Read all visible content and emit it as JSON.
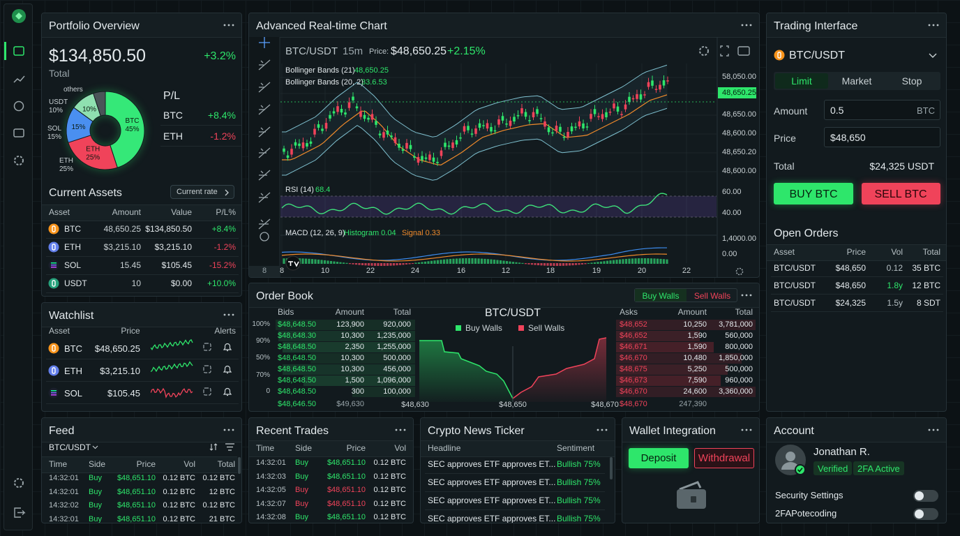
{
  "portfolio": {
    "title": "Portfolio Overview",
    "total_value": "$134,850.50",
    "change": "+3.2%",
    "total_label": "Total",
    "pl_title": "P/L",
    "pl_rows": [
      [
        "BTC",
        "+8.4%"
      ],
      [
        "ETH",
        "-1.2%"
      ]
    ],
    "assets_title": "Current Assets",
    "assets_button": "Current rate",
    "assets_columns": [
      "Asset",
      "Amount",
      "Value",
      "P/L%"
    ],
    "assets_rows": [
      [
        "BTC",
        "48,650.25",
        "$134,850.50",
        "+8.4%"
      ],
      [
        "ETH",
        "$3,215.10",
        "$3,215.10",
        "-1.2%"
      ],
      [
        "SOL",
        "15.45",
        "$105.45",
        "-15.2%"
      ],
      [
        "USDT",
        "10",
        "$0.00",
        "+10.0%"
      ]
    ]
  },
  "chart_data": {
    "type": "pie",
    "categories": [
      "BTC",
      "ETH",
      "SOL",
      "USDT",
      "others"
    ],
    "values": [
      45,
      25,
      15,
      10,
      5
    ],
    "value_labels": [
      "45%",
      "25%",
      "15%",
      "10%",
      null
    ],
    "colors": [
      "#35e878",
      "#f0435a",
      "#4a8ff0",
      "#8fe0b0",
      "#4a5458"
    ]
  },
  "main_chart": {
    "title": "Advanced Real-time Chart",
    "pair": "BTC/USDT",
    "interval": "15m",
    "price_label": "Price:",
    "price": "$48,650.25",
    "change": "+2.15%",
    "indicators": [
      {
        "name": "Bollinger Bands (21)",
        "value": "48,650.25"
      },
      {
        "name": "Bollinger Bands (20, 2)",
        "value": "33.6.53"
      }
    ],
    "rsi": {
      "name": "RSI (14)",
      "value": "68.4"
    },
    "macd": {
      "name": "MACD (12, 26, 9)",
      "histogram": "Histogram 0.04",
      "signal": "Signal 0.33"
    },
    "price_ticks": [
      "58,050.00",
      "48,650.25",
      "48,650.00",
      "48,600.00",
      "48,650.20",
      "48,600.00"
    ],
    "rsi_ticks": [
      "60.00",
      "40.00"
    ],
    "macd_ticks": [
      "1,4000.00",
      "0.00"
    ],
    "x_labels": [
      "8",
      "10",
      "22",
      "24",
      "16",
      "12",
      "18",
      "19",
      "20",
      "22"
    ],
    "toolbar_badge": "8"
  },
  "trading": {
    "title": "Trading Interface",
    "pair": "BTC/USDT",
    "tabs": [
      "Limit",
      "Market",
      "Stop"
    ],
    "amount_label": "Amount",
    "amount": "0.5",
    "amount_unit": "BTC",
    "price_label": "Price",
    "price": "$48,650",
    "total_label": "Total",
    "total": "$24,325 USDT",
    "buy": "BUY BTC",
    "sell": "SELL BTC",
    "orders_title": "Open Orders",
    "orders_columns": [
      "Asset",
      "Price",
      "Vol",
      "Total"
    ],
    "orders_rows": [
      [
        "BTC/USDT",
        "$48,650",
        "0.12",
        "35 BTC"
      ],
      [
        "BTC/USDT",
        "$48,650",
        "1.8y",
        "12 BTC"
      ],
      [
        "BTC/USDT",
        "$24,325",
        "1.5y",
        "8 SDT"
      ]
    ]
  },
  "watchlist": {
    "title": "Watchlist",
    "columns": [
      "Asset",
      "Price",
      "Alerts"
    ],
    "rows": [
      [
        "BTC",
        "$48,650.25"
      ],
      [
        "ETH",
        "$3,215.10"
      ],
      [
        "SOL",
        "$105.45"
      ]
    ]
  },
  "order_book": {
    "title": "Order Book",
    "toggle": [
      "Buy Walls",
      "Sell Walls"
    ],
    "bid_columns": [
      "Bids",
      "Amount",
      "Total"
    ],
    "depth_levels": [
      "100%",
      "90%",
      "50%",
      "70%",
      "0"
    ],
    "bids": [
      [
        "$48,648.50",
        "123,900",
        "920,000"
      ],
      [
        "$48,648.30",
        "10,300",
        "1,235,000"
      ],
      [
        "$48,648.50",
        "2,350",
        "1,255,000"
      ],
      [
        "$48,648.50",
        "10,300",
        "500,000"
      ],
      [
        "$48,648.50",
        "10,300",
        "456,000"
      ],
      [
        "$48,648.50",
        "1,500",
        "1,096,000"
      ],
      [
        "$48,648.50",
        "300",
        "100,000"
      ],
      [
        "$48,646.50",
        "$49,630"
      ]
    ],
    "depth_title": "BTC/USDT",
    "legend": [
      "Buy Walls",
      "Sell Walls"
    ],
    "depth_x_labels": [
      "$48,630",
      "$48,650",
      "$48,670"
    ],
    "ask_columns": [
      "Asks",
      "Amount",
      "Total"
    ],
    "asks": [
      [
        "$48,652",
        "10,250",
        "3,781,000"
      ],
      [
        "$46,652",
        "1,590",
        "560,000"
      ],
      [
        "$46,671",
        "1,590",
        "800,000"
      ],
      [
        "$46,670",
        "10,480",
        "1,850,000"
      ],
      [
        "$48,675",
        "5,250",
        "500,000"
      ],
      [
        "$46,673",
        "7,590",
        "960,000"
      ],
      [
        "$46,670",
        "24,600",
        "3,360,000"
      ],
      [
        "$48,670",
        "247,390"
      ]
    ]
  },
  "feed": {
    "title": "Feed",
    "pair": "BTC/USDT",
    "columns": [
      "Time",
      "Side",
      "Price",
      "Vol",
      "Total"
    ],
    "rows": [
      [
        "14:32:01",
        "Buy",
        "$48,651.10",
        "0.12 BTC",
        "0.12 BTC"
      ],
      [
        "14:32:01",
        "Buy",
        "$48,651.10",
        "0.12 BTC",
        "12 BTC"
      ],
      [
        "14:32:02",
        "Buy",
        "$48,651.10",
        "0.12 BTC",
        "0.12 BTC"
      ],
      [
        "14:32:01",
        "Buy",
        "$48,651.10",
        "0.12 BTC",
        "21 BTC"
      ]
    ]
  },
  "recent_trades": {
    "title": "Recent Trades",
    "columns": [
      "Time",
      "Side",
      "Price",
      "Vol"
    ],
    "rows": [
      [
        "14:32:01",
        "Buy",
        "$48,651.10",
        "0.12 BTC"
      ],
      [
        "14:32:03",
        "Buy",
        "$48,651.10",
        "0.12 BTC"
      ],
      [
        "14:32:05",
        "Buy",
        "$48,651.10",
        "0.12 BTC"
      ],
      [
        "14:32:07",
        "Buy",
        "$48,651.10",
        "0.12 BTC"
      ],
      [
        "14:32:08",
        "Buy",
        "$48,651.10",
        "0.12 BTC"
      ]
    ],
    "colors": [
      "#2ee66b",
      "#2ee66b",
      "#f0435a",
      "#f0435a",
      "#2ee66b"
    ]
  },
  "news": {
    "title": "Crypto News Ticker",
    "columns": [
      "Headline",
      "Sentiment"
    ],
    "rows": [
      [
        "SEC approves ETF approves ET...",
        "Bullish 75%"
      ],
      [
        "SEC approves ETF approves ET...",
        "Bullish 75%"
      ],
      [
        "SEC approves ETF approves ET...",
        "Bullish 75%"
      ],
      [
        "SEC approves ETF approves ET...",
        "Bullish 75%"
      ]
    ]
  },
  "wallet": {
    "title": "Wallet Integration",
    "deposit": "Deposit",
    "withdrawal": "Withdrawal"
  },
  "account": {
    "title": "Account",
    "name": "Jonathan R.",
    "badges": [
      "Verified",
      "2FA Active"
    ],
    "settings": [
      "Security Settings",
      "2FAPotecoding"
    ]
  }
}
